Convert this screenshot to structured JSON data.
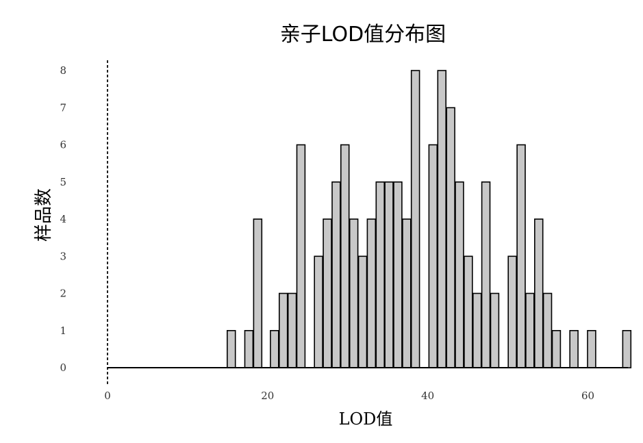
{
  "chart_data": {
    "type": "bar",
    "title": "亲子LOD值分布图",
    "xlabel": "LOD值",
    "ylabel": "样品数",
    "xlim": [
      0,
      65
    ],
    "ylim": [
      0,
      8
    ],
    "xticks": [
      0,
      20,
      40,
      60
    ],
    "yticks": [
      0,
      1,
      2,
      3,
      4,
      5,
      6,
      7,
      8
    ],
    "bin_width": 1.1,
    "grid": false,
    "x": [
      15.5,
      17.7,
      18.8,
      20.9,
      22.0,
      23.1,
      24.2,
      26.4,
      27.5,
      28.6,
      29.7,
      30.8,
      31.9,
      33.0,
      34.1,
      35.2,
      36.3,
      37.4,
      38.5,
      40.7,
      41.8,
      42.9,
      44.0,
      45.1,
      46.2,
      47.3,
      48.4,
      50.6,
      51.7,
      52.8,
      53.9,
      55.0,
      56.1,
      58.3,
      60.5,
      64.9
    ],
    "values": [
      1,
      1,
      4,
      1,
      2,
      2,
      6,
      3,
      4,
      5,
      6,
      4,
      3,
      4,
      5,
      5,
      5,
      4,
      8,
      6,
      8,
      7,
      5,
      3,
      2,
      5,
      2,
      3,
      6,
      2,
      4,
      2,
      1,
      1,
      1,
      1
    ]
  }
}
